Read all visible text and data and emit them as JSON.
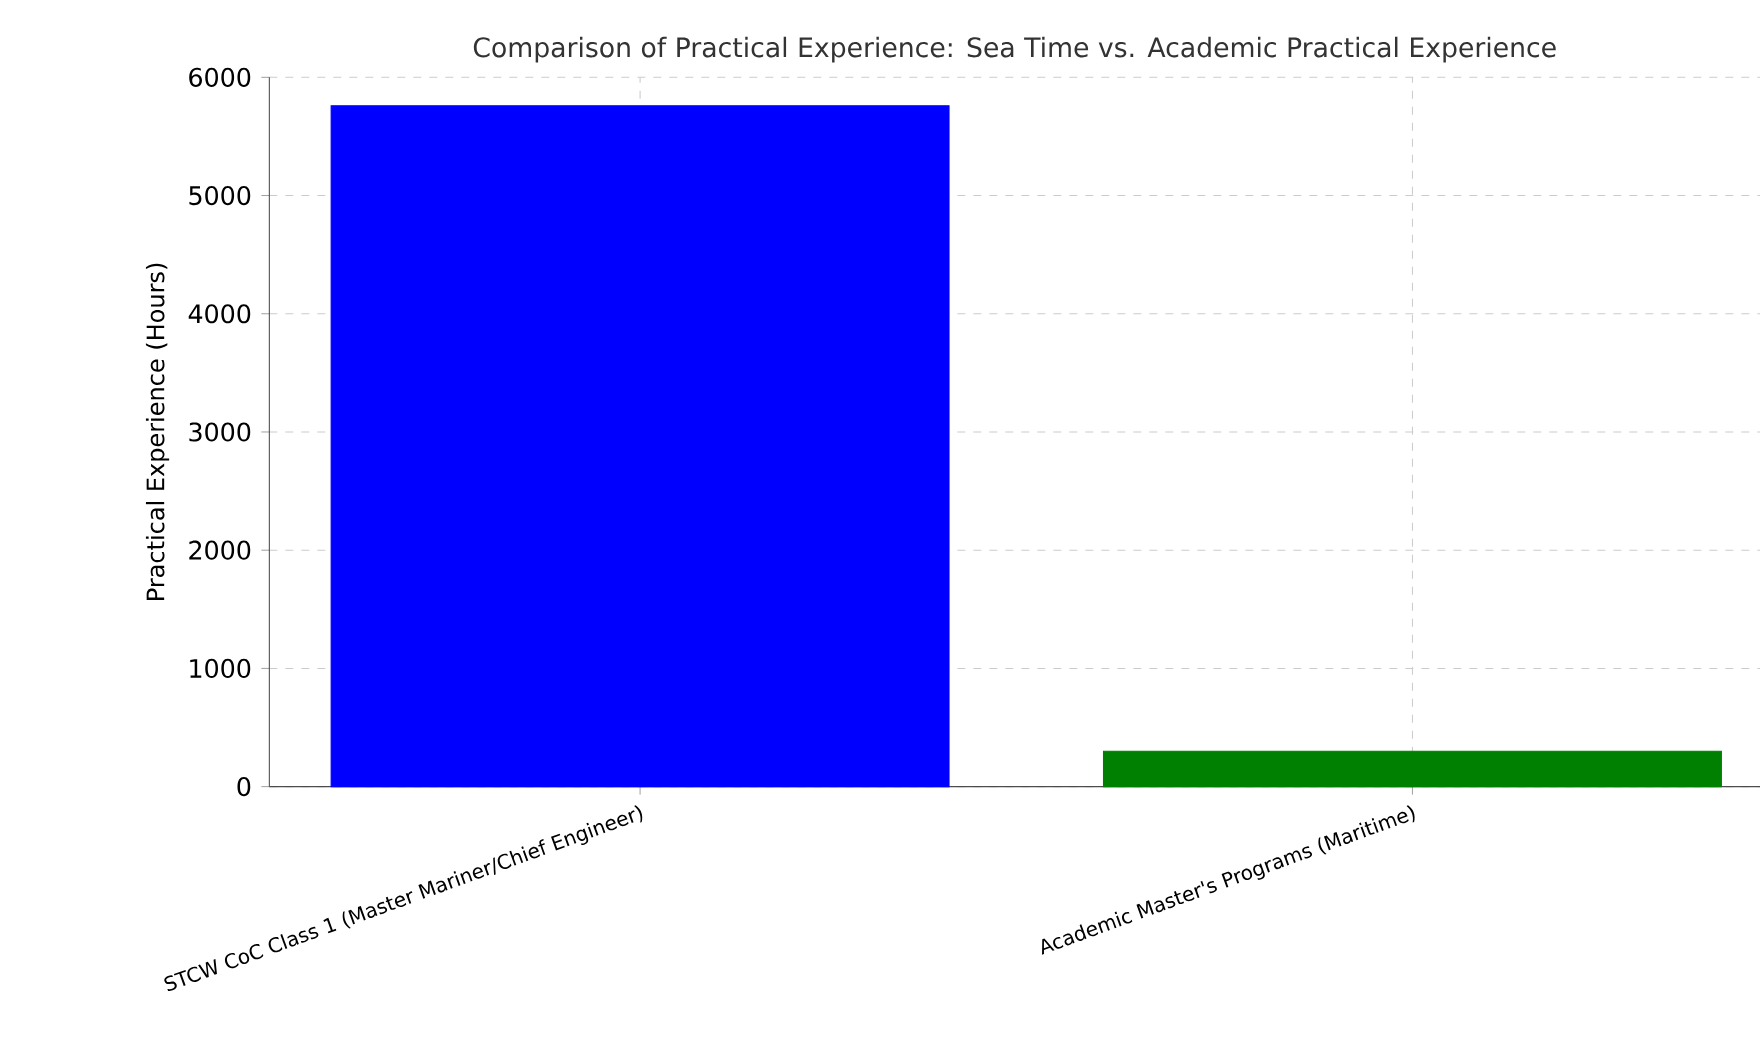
{
  "chart_data": {
    "type": "bar",
    "title": "Comparison of Practical Experience: Sea Time vs. Academic Practical Experience",
    "ylabel": "Practical Experience (Hours)",
    "categories": [
      "STCW CoC Class 1 (Master Mariner/Chief Engineer)",
      "Academic Master's Programs (Maritime)"
    ],
    "values": [
      5760,
      300
    ],
    "colors": [
      "#0000ff",
      "#008000"
    ],
    "ylim": [
      0,
      6000
    ],
    "yticks": [
      0,
      1000,
      2000,
      3000,
      4000,
      5000,
      6000
    ],
    "grid": true
  }
}
